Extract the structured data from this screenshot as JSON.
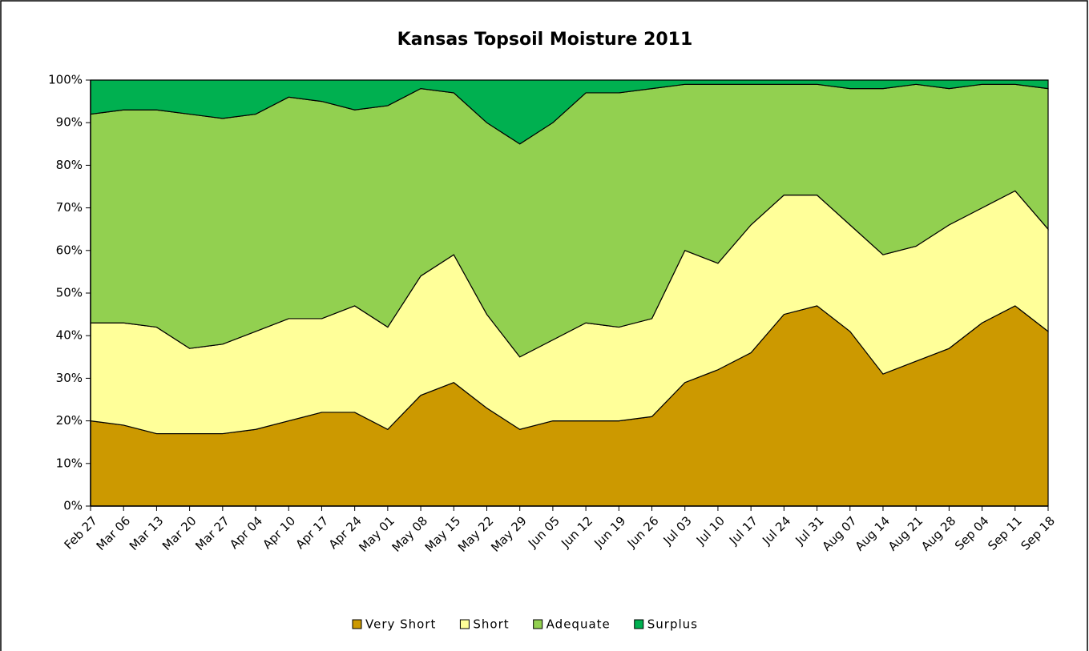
{
  "chart_data": {
    "type": "stacked-area",
    "title": "Kansas Topsoil Moisture 2011",
    "categories": [
      "Feb 27",
      "Mar 06",
      "Mar 13",
      "Mar 20",
      "Mar 27",
      "Apr 04",
      "Apr 10",
      "Apr 17",
      "Apr 24",
      "May 01",
      "May 08",
      "May 15",
      "May 22",
      "May 29",
      "Jun 05",
      "Jun 12",
      "Jun 19",
      "Jun 26",
      "Jul 03",
      "Jul 10",
      "Jul 17",
      "Jul 24",
      "Jul 31",
      "Aug 07",
      "Aug 14",
      "Aug 21",
      "Aug 28",
      "Sep 04",
      "Sep 11",
      "Sep 18"
    ],
    "series": [
      {
        "name": "Very Short",
        "color": "#cc9900",
        "values": [
          20,
          19,
          17,
          17,
          17,
          18,
          20,
          22,
          22,
          18,
          26,
          29,
          23,
          18,
          20,
          20,
          20,
          21,
          29,
          32,
          36,
          45,
          47,
          41,
          31,
          34,
          37,
          43,
          47,
          41
        ]
      },
      {
        "name": "Short",
        "color": "#ffff99",
        "values": [
          23,
          24,
          25,
          20,
          21,
          23,
          24,
          22,
          25,
          24,
          28,
          30,
          22,
          17,
          19,
          23,
          22,
          23,
          31,
          25,
          30,
          28,
          26,
          25,
          28,
          27,
          29,
          27,
          27,
          24
        ]
      },
      {
        "name": "Adequate",
        "color": "#92d050",
        "values": [
          49,
          50,
          51,
          55,
          53,
          51,
          52,
          51,
          46,
          52,
          44,
          38,
          45,
          50,
          51,
          54,
          55,
          54,
          39,
          42,
          33,
          26,
          26,
          32,
          39,
          38,
          32,
          29,
          25,
          33
        ]
      },
      {
        "name": "Surplus",
        "color": "#00b050",
        "values": [
          8,
          7,
          7,
          8,
          9,
          8,
          4,
          5,
          7,
          6,
          2,
          3,
          10,
          15,
          10,
          3,
          3,
          2,
          1,
          1,
          1,
          1,
          1,
          2,
          2,
          1,
          2,
          1,
          1,
          2
        ]
      }
    ],
    "ylim": [
      0,
      100
    ],
    "yticks": [
      {
        "value": 0,
        "label": "0%"
      },
      {
        "value": 10,
        "label": "10%"
      },
      {
        "value": 20,
        "label": "20%"
      },
      {
        "value": 30,
        "label": "30%"
      },
      {
        "value": 40,
        "label": "40%"
      },
      {
        "value": 50,
        "label": "50%"
      },
      {
        "value": 60,
        "label": "60%"
      },
      {
        "value": 70,
        "label": "70%"
      },
      {
        "value": 80,
        "label": "80%"
      },
      {
        "value": 90,
        "label": "90%"
      },
      {
        "value": 100,
        "label": "100%"
      }
    ],
    "legend": "bottom"
  }
}
